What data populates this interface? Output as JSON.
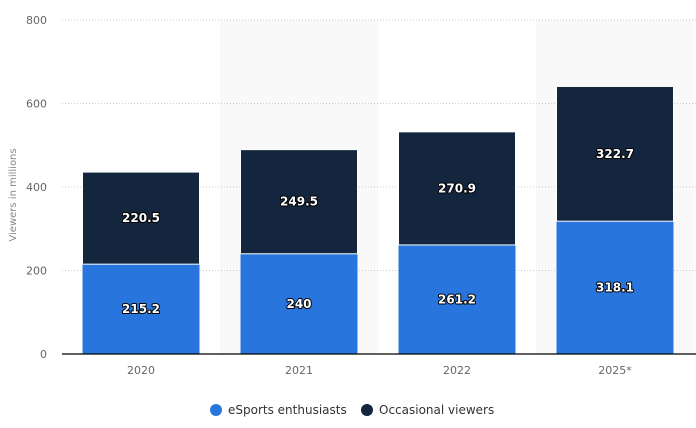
{
  "chart_data": {
    "type": "bar",
    "stacked": true,
    "categories": [
      "2020",
      "2021",
      "2022",
      "2025*"
    ],
    "series": [
      {
        "name": "eSports enthusiasts",
        "values": [
          215.2,
          240,
          261.2,
          318.1
        ],
        "color": "#2876dd"
      },
      {
        "name": "Occasional viewers",
        "values": [
          220.5,
          249.5,
          270.9,
          322.7
        ],
        "color": "#13263e"
      }
    ],
    "title": "",
    "xlabel": "",
    "ylabel": "Viewers in millions",
    "ylim": [
      0,
      800
    ],
    "yticks": [
      0,
      200,
      400,
      600,
      800
    ],
    "grid": true,
    "legend": "bottom-center",
    "data_labels": true
  }
}
